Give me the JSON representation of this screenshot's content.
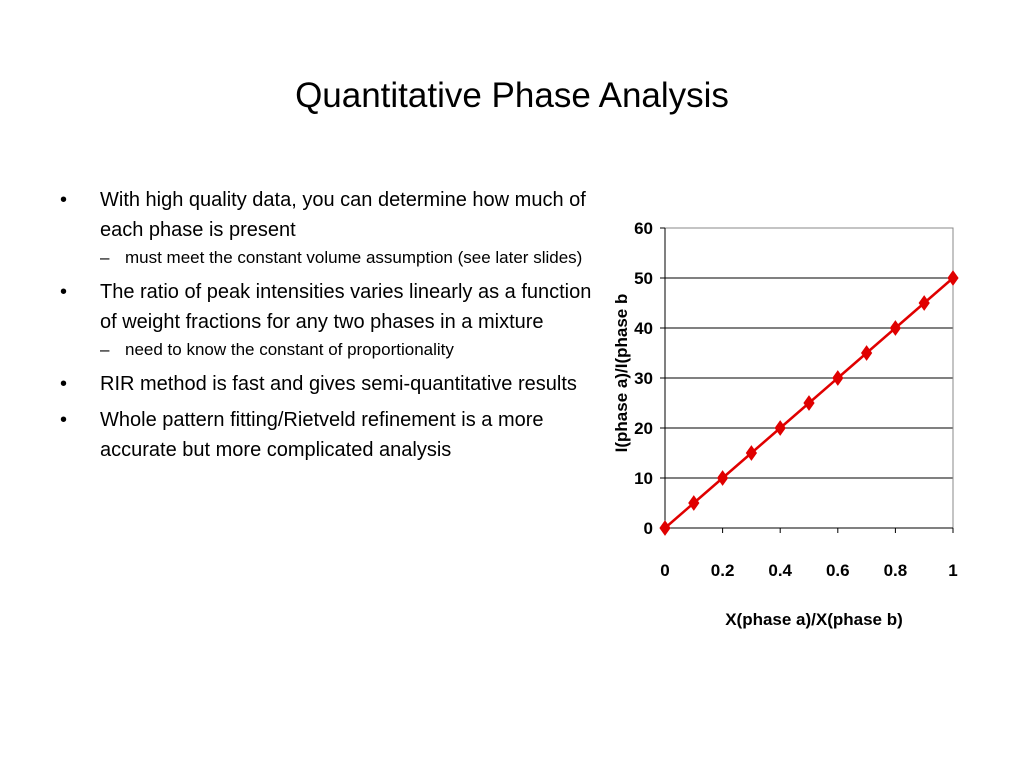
{
  "slide": {
    "title": "Quantitative Phase Analysis",
    "bullets": [
      {
        "marker": "•",
        "text": "With high quality data, you can determine how much of each phase is present",
        "subs": [
          {
            "marker": "–",
            "text": "must meet the constant volume assumption (see later slides)"
          }
        ]
      },
      {
        "marker": "•",
        "text": "The ratio of peak intensities varies linearly as a function of weight fractions for any two phases in a mixture",
        "subs": [
          {
            "marker": "–",
            "text": "need to know the constant of proportionality"
          }
        ]
      },
      {
        "marker": "•",
        "text": "RIR method is fast and gives semi-quantitative results",
        "subs": []
      },
      {
        "marker": "•",
        "text": "Whole pattern fitting/Rietveld refinement is a more accurate but more complicated analysis",
        "subs": []
      }
    ]
  },
  "chart_data": {
    "type": "line",
    "title": "",
    "xlabel": "X(phase a)/X(phase b)",
    "ylabel": "I(phase a)/I(phase b",
    "xlim": [
      0,
      1
    ],
    "ylim": [
      0,
      60
    ],
    "x_ticks": [
      "0",
      "0.2",
      "0.4",
      "0.6",
      "0.8",
      "1"
    ],
    "y_ticks": [
      "0",
      "10",
      "20",
      "30",
      "40",
      "50",
      "60"
    ],
    "grid": "horizontal",
    "series": [
      {
        "x": [
          0,
          0.1,
          0.2,
          0.3,
          0.4,
          0.5,
          0.6,
          0.7,
          0.8,
          0.9,
          1.0
        ],
        "y": [
          0,
          5,
          10,
          15,
          20,
          25,
          30,
          35,
          40,
          45,
          50
        ],
        "color": "#e00000",
        "marker": "diamond"
      }
    ]
  }
}
